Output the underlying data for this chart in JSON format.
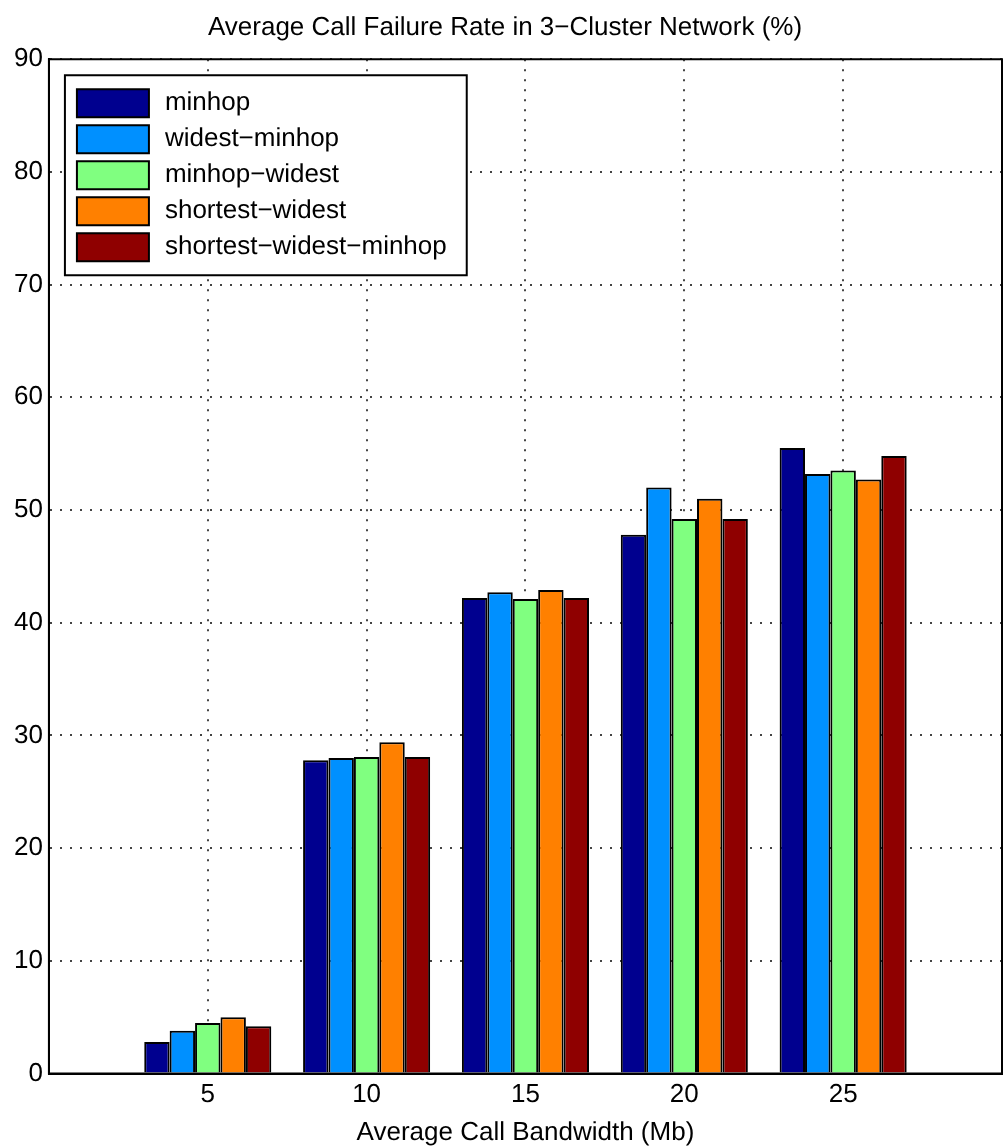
{
  "chart_data": {
    "type": "bar",
    "title": "Average Call Failure Rate in 3−Cluster Network (%)",
    "xlabel": "Average Call Bandwidth (Mb)",
    "x": [
      5,
      10,
      15,
      20,
      25
    ],
    "xlim": [
      0,
      30
    ],
    "xticks": [
      5,
      10,
      15,
      20,
      25
    ],
    "ylim": [
      0,
      90
    ],
    "yticks": [
      0,
      10,
      20,
      30,
      40,
      50,
      60,
      70,
      80,
      90
    ],
    "grid": true,
    "legend": "top left",
    "line_style": "dotted",
    "series": [
      {
        "name": "minhop",
        "color": "#00008f",
        "values": [
          2.8,
          27.8,
          42.2,
          47.8,
          55.5
        ]
      },
      {
        "name": "widest−minhop",
        "color": "#0090ff",
        "values": [
          3.8,
          28.0,
          42.7,
          52.0,
          53.2
        ]
      },
      {
        "name": "minhop−widest",
        "color": "#80ff80",
        "values": [
          4.5,
          28.1,
          42.1,
          49.2,
          53.5
        ]
      },
      {
        "name": "shortest−widest",
        "color": "#ff8000",
        "values": [
          5.0,
          29.4,
          42.9,
          51.0,
          52.7
        ]
      },
      {
        "name": "shortest−widest−minhop",
        "color": "#8f0000",
        "values": [
          4.2,
          28.1,
          42.2,
          49.2,
          54.8
        ]
      }
    ]
  }
}
